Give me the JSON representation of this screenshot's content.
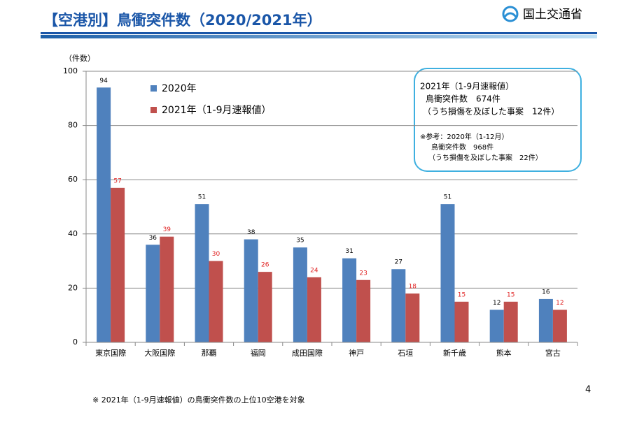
{
  "chart_data": {
    "type": "bar",
    "title": "【空港別】鳥衝突件数（2020/2021年）",
    "logo": "国土交通省",
    "y_label": "（件数）",
    "categories": [
      "東京国際",
      "大阪国際",
      "那覇",
      "福岡",
      "成田国際",
      "神戸",
      "石垣",
      "新千歳",
      "熊本",
      "宮古"
    ],
    "series": [
      {
        "name": "2020年",
        "color": "#4f81bd",
        "label_color": "#000000",
        "values": [
          94,
          36,
          51,
          38,
          35,
          31,
          27,
          51,
          12,
          16
        ]
      },
      {
        "name": "2021年（1-9月速報値）",
        "color": "#c0504d",
        "label_color": "#e02020",
        "values": [
          57,
          39,
          30,
          26,
          24,
          23,
          18,
          15,
          15,
          12
        ]
      }
    ],
    "ylim": [
      0,
      100
    ],
    "yticks": [
      0,
      20,
      40,
      60,
      80,
      100
    ],
    "grid": true,
    "note_box": [
      "2021年（1-9月速報値）",
      "鳥衝突件数　674件",
      "（うち損傷を及ぼした事案　12件）",
      "※参考：2020年（1-12月）",
      "鳥衝突件数　968件",
      "（うち損傷を及ぼした事案　22件）"
    ],
    "footnote": "※ 2021年（1-9月速報値）の鳥衝突件数の上位10空港を対象",
    "page_number": 4
  }
}
